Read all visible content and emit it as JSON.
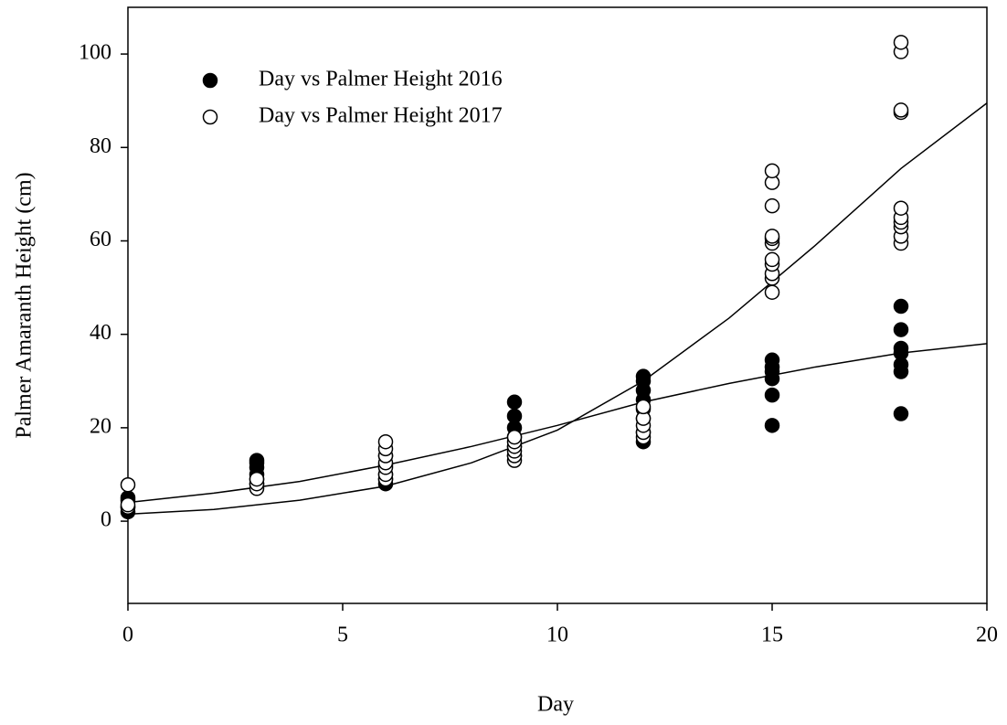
{
  "chart_data": {
    "type": "scatter",
    "x_label": "Day",
    "y_label": "Palmer Amaranth Height (cm)",
    "xlim": [
      0,
      20
    ],
    "xticks": [
      0,
      5,
      10,
      15,
      20
    ],
    "ylim": [
      -17.6,
      110
    ],
    "yticks": [
      0,
      20,
      40,
      60,
      80,
      100
    ],
    "legend": "upper-left",
    "fit_x": [
      0,
      2,
      4,
      6,
      8,
      10,
      12,
      14,
      16,
      18,
      20
    ],
    "series": [
      {
        "name": "Day vs Palmer Height 2016",
        "color": "#000000",
        "filled": true,
        "x": [
          0,
          0,
          0,
          0,
          3,
          3,
          3,
          3,
          3,
          3,
          6,
          6,
          6,
          6,
          6,
          9,
          9,
          9,
          9,
          9,
          9,
          12,
          12,
          12,
          12,
          12,
          12,
          12,
          12,
          15,
          15,
          15,
          15,
          15,
          15,
          18,
          18,
          18,
          18,
          18,
          18,
          18
        ],
        "values": [
          2,
          3,
          4.5,
          5,
          8,
          9,
          10,
          11.5,
          12.5,
          13,
          8,
          9,
          10,
          12,
          14,
          14,
          16,
          18,
          20,
          22.5,
          25.5,
          17,
          19,
          22,
          24,
          26,
          28,
          30,
          31,
          20.5,
          27,
          30.5,
          32,
          33,
          34.5,
          23,
          32,
          33.5,
          36,
          37,
          41,
          46
        ],
        "fit": [
          4,
          6,
          8.5,
          12,
          16,
          20.5,
          25.5,
          29.5,
          33,
          36,
          38
        ]
      },
      {
        "name": "Day vs Palmer Height 2017",
        "color": "#000000",
        "filled": false,
        "x": [
          0,
          0,
          0,
          3,
          3,
          3,
          6,
          6,
          6,
          6,
          6,
          6,
          6,
          9,
          9,
          9,
          9,
          9,
          9,
          12,
          12,
          12,
          12,
          12,
          15,
          15,
          15,
          15,
          15,
          15,
          15,
          15,
          15,
          15,
          15,
          18,
          18,
          18,
          18,
          18,
          18,
          18,
          18,
          18,
          18
        ],
        "values": [
          3,
          3.5,
          7.8,
          7,
          8,
          9,
          9,
          10,
          11.5,
          12.5,
          14,
          15.5,
          17,
          13,
          14,
          15,
          16,
          17,
          18,
          18,
          19,
          20.5,
          22,
          24.5,
          49,
          52,
          53,
          55,
          56,
          59.5,
          60.5,
          61,
          67.5,
          72.5,
          75,
          59.5,
          61,
          63,
          64,
          65,
          67,
          87.5,
          88,
          100.5,
          102.5
        ],
        "fit": [
          1.5,
          2.5,
          4.5,
          7.5,
          12.5,
          19.5,
          30,
          43.5,
          59,
          75.5,
          89.5
        ]
      }
    ]
  }
}
